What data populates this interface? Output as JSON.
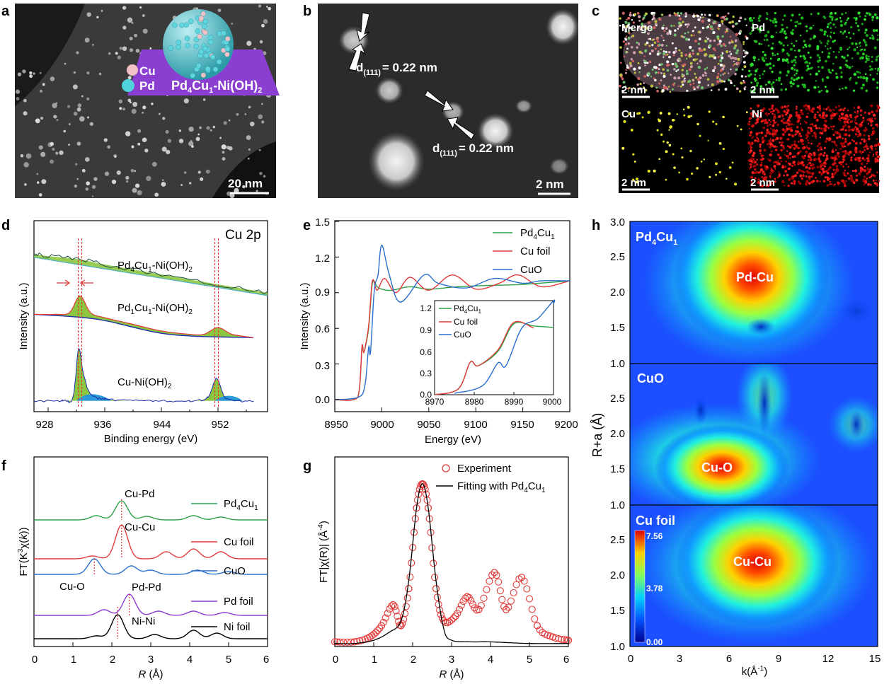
{
  "panels": {
    "a": {
      "letter": "a",
      "scale": "20 nm",
      "legend_cu": "Cu",
      "legend_pd": "Pd",
      "label_parts": [
        "Pd",
        "4",
        "Cu",
        "1",
        "-Ni(OH)",
        "2"
      ]
    },
    "b": {
      "letter": "b",
      "scale": "2 nm",
      "d_main": "d",
      "d_sub": "(111)",
      "d_value": "= 0.22 nm"
    },
    "c": {
      "letter": "c",
      "tiles": [
        "Merge",
        "Pd",
        "Cu",
        "Ni"
      ],
      "scale": "2 nm"
    },
    "d": {
      "letter": "d",
      "title": "Cu 2p",
      "ylabel": "Intensity (a.u.)",
      "xlabel": "Binding energy (eV)",
      "xticks": [
        "928",
        "936",
        "944",
        "952"
      ],
      "curve_labels": [
        [
          "Pd",
          "4",
          "Cu",
          "1",
          "-Ni(OH)",
          "2"
        ],
        [
          "Pd",
          "1",
          "Cu",
          "1",
          "-Ni(OH)",
          "2"
        ],
        [
          "Cu-Ni(OH)",
          "2"
        ]
      ]
    },
    "e": {
      "letter": "e",
      "ylabel": "Intensity (a.u.)",
      "xlabel": "Energy (eV)",
      "xticks": [
        "8950",
        "9000",
        "9050",
        "9100",
        "9150",
        "9200"
      ],
      "yticks": [
        "0.0",
        "0.3",
        "0.6",
        "0.9",
        "1.2",
        "1.5"
      ],
      "legend": [
        [
          "Pd",
          "4",
          "Cu",
          "1"
        ],
        [
          "Cu foil"
        ],
        [
          "CuO"
        ]
      ],
      "inset_xticks": [
        "8970",
        "8980",
        "8990",
        "9000"
      ],
      "inset_yticks": [
        "0.0",
        "0.3",
        "0.6",
        "0.9",
        "1.2"
      ]
    },
    "f": {
      "letter": "f",
      "ylabel": [
        "FT(K",
        "3",
        "χ(",
        "k",
        "))"
      ],
      "xlabel_var": "R",
      "xlabel_unit": " (Å)",
      "xticks": [
        "0",
        "1",
        "2",
        "3",
        "4",
        "5",
        "6"
      ],
      "series_labels": [
        [
          "Pd",
          "4",
          "Cu",
          "1"
        ],
        [
          "Cu foil"
        ],
        [
          "CuO"
        ],
        [
          "Pd foil"
        ],
        [
          "Ni foil"
        ]
      ],
      "peak_labels": [
        "Cu-Pd",
        "Cu-Cu",
        "Cu-O",
        "Pd-Pd",
        "Ni-Ni"
      ]
    },
    "g": {
      "letter": "g",
      "ylabel": [
        "FT|χ(R)| (Å",
        "-4",
        ")"
      ],
      "xlabel_var": "R",
      "xlabel_unit": " (Å)",
      "xticks": [
        "0",
        "1",
        "2",
        "3",
        "4",
        "5",
        "6"
      ],
      "legend_exp": "Experiment",
      "legend_fit": [
        "Fitting with Pd",
        "4",
        "Cu",
        "1"
      ]
    },
    "h": {
      "letter": "h",
      "ylabel": "R+a (Å)",
      "xlabel": [
        "k(Å",
        "-1",
        ")"
      ],
      "xticks": [
        "0",
        "3",
        "6",
        "9",
        "12",
        "15"
      ],
      "yticks_top": [
        "1.0",
        "1.5",
        "2.0",
        "2.5",
        "3.0"
      ],
      "yticks_mid": [
        "1.0",
        "1.5",
        "2.0",
        "2.5"
      ],
      "yticks_bot": [
        "1.0",
        "1.5",
        "2.0",
        "2.5"
      ],
      "maps": [
        {
          "sample": [
            "Pd",
            "4",
            "Cu",
            "1"
          ],
          "peak": "Pd-Cu"
        },
        {
          "sample": [
            "CuO"
          ],
          "peak": "Cu-O"
        },
        {
          "sample": [
            "Cu foil"
          ],
          "peak": "Cu-Cu"
        }
      ],
      "colorbar": [
        "7.56",
        "3.78",
        "0.00"
      ]
    }
  },
  "chart_data": [
    {
      "panel": "d",
      "type": "line",
      "title": "Cu 2p",
      "xlabel": "Binding energy (eV)",
      "ylabel": "Intensity (a.u.)",
      "xlim": [
        926,
        959
      ],
      "x_reversed": false,
      "series": [
        {
          "name": "Pd4Cu1-Ni(OH)2",
          "x": [
            926,
            928,
            932.5,
            936,
            944,
            952,
            959
          ],
          "y": [
            0.92,
            0.91,
            0.89,
            0.86,
            0.8,
            0.74,
            0.69
          ]
        },
        {
          "name": "Pd1Cu1-Ni(OH)2",
          "x": [
            926,
            929,
            931,
            932.5,
            934,
            936,
            940,
            944,
            948,
            950,
            952,
            954,
            957
          ],
          "y": [
            0.56,
            0.56,
            0.57,
            0.67,
            0.57,
            0.54,
            0.5,
            0.46,
            0.44,
            0.44,
            0.48,
            0.44,
            0.42
          ]
        },
        {
          "name": "Cu-Ni(OH)2",
          "x": [
            926,
            930,
            931.5,
            932.3,
            933,
            934,
            936,
            940,
            944,
            948,
            950.5,
            951.8,
            953,
            955,
            957
          ],
          "y": [
            0.04,
            0.04,
            0.06,
            0.35,
            0.2,
            0.08,
            0.05,
            0.04,
            0.04,
            0.04,
            0.06,
            0.17,
            0.06,
            0.04,
            0.04
          ]
        }
      ],
      "markers_eV": [
        932.5,
        951.8
      ]
    },
    {
      "panel": "e",
      "type": "line",
      "xlabel": "Energy (eV)",
      "ylabel": "Intensity (a.u.)",
      "xlim": [
        8950,
        9200
      ],
      "ylim": [
        -0.1,
        1.5
      ],
      "series": [
        {
          "name": "Pd4Cu1",
          "x": [
            8950,
            8970,
            8976,
            8979,
            8981,
            8986,
            8990,
            8995,
            9000,
            9010,
            9030,
            9050,
            9080,
            9110,
            9150,
            9200
          ],
          "y": [
            0,
            0,
            0.08,
            0.45,
            0.4,
            0.6,
            0.98,
            0.95,
            0.93,
            0.92,
            0.95,
            0.93,
            0.95,
            0.96,
            0.97,
            1.0
          ]
        },
        {
          "name": "Cu foil",
          "x": [
            8950,
            8970,
            8976,
            8979,
            8981,
            8986,
            8990,
            8995,
            9003,
            9015,
            9030,
            9050,
            9075,
            9100,
            9125,
            9145,
            9170,
            9200
          ],
          "y": [
            0,
            0,
            0.08,
            0.45,
            0.4,
            0.62,
            1.0,
            0.92,
            1.02,
            0.9,
            1.03,
            0.92,
            1.05,
            0.93,
            0.98,
            1.05,
            0.95,
            1.0
          ]
        },
        {
          "name": "CuO",
          "x": [
            8950,
            8975,
            8982,
            8986,
            8988,
            8992,
            8996,
            9000,
            9008,
            9020,
            9045,
            9060,
            9090,
            9120,
            9150,
            9170,
            9200
          ],
          "y": [
            0,
            0.02,
            0.12,
            0.44,
            0.4,
            0.92,
            1.05,
            1.3,
            1.05,
            0.82,
            1.05,
            0.98,
            0.94,
            1.02,
            0.98,
            1.0,
            1.0
          ]
        }
      ],
      "inset": {
        "xlim": [
          8970,
          9000
        ],
        "ylim": [
          0,
          1.3
        ]
      }
    },
    {
      "panel": "f",
      "type": "line",
      "xlabel": "R (Å)",
      "xlim": [
        0,
        6
      ],
      "series": [
        {
          "name": "Pd4Cu1",
          "peak_R": 2.25
        },
        {
          "name": "Cu foil",
          "peak_R": 2.25
        },
        {
          "name": "CuO",
          "peak_R": 1.55
        },
        {
          "name": "Pd foil",
          "peak_R": 2.45
        },
        {
          "name": "Ni foil",
          "peak_R": 2.15
        }
      ]
    },
    {
      "panel": "g",
      "type": "line",
      "xlabel": "R (Å)",
      "xlim": [
        0,
        6
      ],
      "series": [
        {
          "name": "Experiment",
          "x": [
            0,
            0.5,
            0.9,
            1.2,
            1.5,
            1.7,
            1.9,
            2.1,
            2.25,
            2.4,
            2.6,
            2.8,
            3.1,
            3.4,
            3.7,
            4.1,
            4.4,
            4.8,
            5.2,
            5.6,
            6.0
          ],
          "y": [
            0.02,
            0.02,
            0.05,
            0.12,
            0.25,
            0.12,
            0.35,
            0.85,
            1.0,
            0.85,
            0.35,
            0.15,
            0.18,
            0.3,
            0.22,
            0.45,
            0.22,
            0.42,
            0.12,
            0.05,
            0.03
          ]
        },
        {
          "name": "Fitting with Pd4Cu1",
          "x": [
            0,
            0.5,
            1.0,
            1.4,
            1.7,
            1.9,
            2.1,
            2.25,
            2.4,
            2.6,
            2.8,
            3.0,
            3.5,
            4.0,
            5.0,
            6.0
          ],
          "y": [
            0.01,
            0.01,
            0.03,
            0.08,
            0.15,
            0.4,
            0.85,
            1.0,
            0.85,
            0.4,
            0.1,
            0.03,
            0.02,
            0.02,
            0.01,
            0.01
          ]
        }
      ]
    },
    {
      "panel": "h",
      "type": "heatmap",
      "xlabel": "k(Å-1)",
      "ylabel": "R+a (Å)",
      "xlim": [
        0,
        15
      ],
      "ylim": [
        1.0,
        3.0
      ],
      "maps": [
        {
          "name": "Pd4Cu1",
          "peak": "Pd-Cu"
        },
        {
          "name": "CuO",
          "peak": "Cu-O"
        },
        {
          "name": "Cu foil",
          "peak": "Cu-Cu"
        }
      ],
      "colorbar_range": [
        0.0,
        7.56
      ]
    }
  ]
}
